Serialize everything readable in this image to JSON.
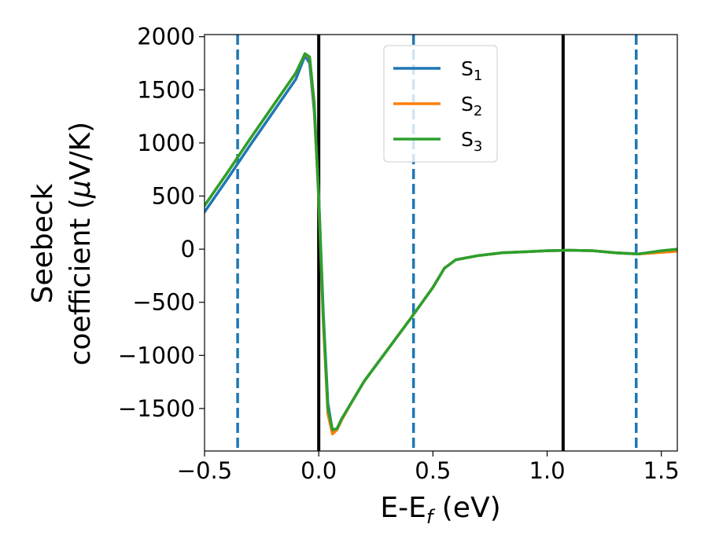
{
  "chart_data": {
    "type": "line",
    "xlabel": "E-E",
    "xlabel_sub": "f",
    "xlabel_unit": " (eV)",
    "ylabel_line1": "Seebeck",
    "ylabel_line2_prefix": "coefficient  (",
    "ylabel_mu": "μ",
    "ylabel_line2_suffix": "V/K)",
    "xlim": [
      -0.5,
      1.57
    ],
    "ylim": [
      -1900,
      2020
    ],
    "x_ticks": [
      -0.5,
      0.0,
      0.5,
      1.0,
      1.5
    ],
    "x_tick_labels": [
      "−0.5",
      "0.0",
      "0.5",
      "1.0",
      "1.5"
    ],
    "y_ticks": [
      -1500,
      -1000,
      -500,
      0,
      500,
      1000,
      1500,
      2000
    ],
    "y_tick_labels": [
      "−1500",
      "−1000",
      "−500",
      "0",
      "500",
      "1000",
      "1500",
      "2000"
    ],
    "grid": false,
    "legend_position": "top-center",
    "vertical_lines": [
      {
        "x": 0.0,
        "style": "solid",
        "color": "#000000"
      },
      {
        "x": 1.07,
        "style": "solid",
        "color": "#000000"
      },
      {
        "x": -0.355,
        "style": "dashed",
        "color": "#1f77b4"
      },
      {
        "x": 0.415,
        "style": "dashed",
        "color": "#1f77b4"
      },
      {
        "x": 1.39,
        "style": "dashed",
        "color": "#1f77b4"
      }
    ],
    "series": [
      {
        "name": "S",
        "sub": "1",
        "color": "#1f77b4",
        "x": [
          -0.5,
          -0.4,
          -0.3,
          -0.2,
          -0.1,
          -0.06,
          -0.04,
          -0.02,
          0.0,
          0.02,
          0.04,
          0.06,
          0.08,
          0.1,
          0.15,
          0.2,
          0.3,
          0.4,
          0.5,
          0.55,
          0.6,
          0.7,
          0.8,
          0.9,
          1.0,
          1.1,
          1.2,
          1.3,
          1.4,
          1.5,
          1.57
        ],
        "y": [
          350,
          660,
          980,
          1290,
          1600,
          1820,
          1750,
          1300,
          500,
          -600,
          -1450,
          -1710,
          -1690,
          -1600,
          -1420,
          -1240,
          -950,
          -660,
          -360,
          -180,
          -100,
          -60,
          -35,
          -25,
          -15,
          -10,
          -15,
          -35,
          -45,
          -20,
          0
        ]
      },
      {
        "name": "S",
        "sub": "2",
        "color": "#ff7f0e",
        "x": [
          -0.5,
          -0.4,
          -0.3,
          -0.2,
          -0.1,
          -0.06,
          -0.04,
          -0.02,
          0.0,
          0.02,
          0.04,
          0.06,
          0.08,
          0.1,
          0.15,
          0.2,
          0.3,
          0.4,
          0.5,
          0.55,
          0.6,
          0.7,
          0.8,
          0.9,
          1.0,
          1.1,
          1.2,
          1.3,
          1.4,
          1.5,
          1.57
        ],
        "y": [
          410,
          720,
          1040,
          1350,
          1660,
          1840,
          1800,
          1350,
          450,
          -700,
          -1550,
          -1740,
          -1700,
          -1610,
          -1420,
          -1240,
          -950,
          -660,
          -360,
          -180,
          -100,
          -60,
          -35,
          -25,
          -15,
          -10,
          -15,
          -35,
          -45,
          -30,
          -20
        ]
      },
      {
        "name": "S",
        "sub": "3",
        "color": "#2ca02c",
        "x": [
          -0.5,
          -0.4,
          -0.3,
          -0.2,
          -0.1,
          -0.06,
          -0.04,
          -0.02,
          0.0,
          0.02,
          0.04,
          0.06,
          0.08,
          0.1,
          0.15,
          0.2,
          0.3,
          0.4,
          0.5,
          0.55,
          0.6,
          0.7,
          0.8,
          0.9,
          1.0,
          1.1,
          1.2,
          1.3,
          1.4,
          1.5,
          1.57
        ],
        "y": [
          410,
          720,
          1040,
          1350,
          1660,
          1840,
          1810,
          1380,
          480,
          -650,
          -1500,
          -1700,
          -1690,
          -1600,
          -1420,
          -1240,
          -950,
          -660,
          -360,
          -180,
          -100,
          -60,
          -35,
          -25,
          -15,
          -10,
          -15,
          -35,
          -45,
          -15,
          0
        ]
      }
    ]
  }
}
